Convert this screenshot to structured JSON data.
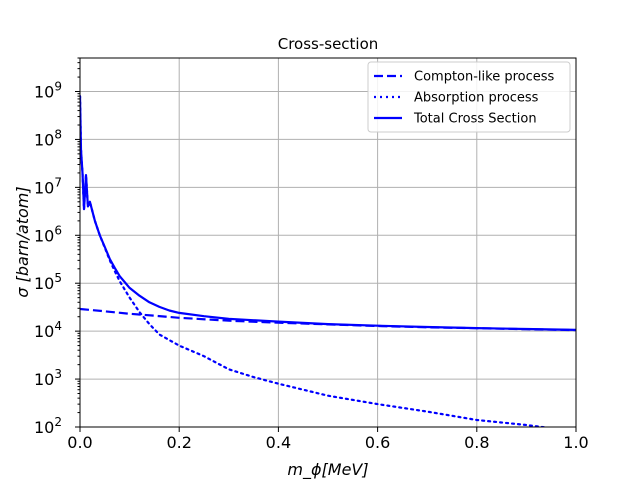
{
  "chart_data": {
    "type": "line",
    "title": "Cross-section",
    "xlabel": "m_ϕ[MeV]",
    "ylabel": "σ [barn/atom]",
    "xlim": [
      0.0,
      1.0
    ],
    "ylim": [
      100,
      5000000000
    ],
    "yscale": "log",
    "grid": true,
    "legend_position": "top-right",
    "x_ticks": [
      "0.0",
      "0.2",
      "0.4",
      "0.6",
      "0.8",
      "1.0"
    ],
    "x_tick_values": [
      0.0,
      0.2,
      0.4,
      0.6,
      0.8,
      1.0
    ],
    "y_tick_exponents": [
      2,
      3,
      4,
      5,
      6,
      7,
      8,
      9
    ],
    "y_tick_base": "10",
    "series": [
      {
        "name": "Compton-like process",
        "style": "dashed",
        "color": "#0000ff",
        "x": [
          0.0,
          0.05,
          0.1,
          0.15,
          0.2,
          0.3,
          0.4,
          0.5,
          0.6,
          0.7,
          0.8,
          0.9,
          1.0
        ],
        "y": [
          29000,
          26000,
          23000,
          21000,
          19000,
          16500,
          15000,
          13800,
          12800,
          12000,
          11500,
          11000,
          10500
        ]
      },
      {
        "name": "Absorption process",
        "style": "dotted",
        "color": "#0000ff",
        "x": [
          0.0,
          0.002,
          0.005,
          0.008,
          0.012,
          0.016,
          0.02,
          0.03,
          0.04,
          0.05,
          0.06,
          0.07,
          0.08,
          0.1,
          0.12,
          0.14,
          0.16,
          0.2,
          0.25,
          0.3,
          0.35,
          0.4,
          0.45,
          0.5,
          0.6,
          0.7,
          0.8,
          0.9,
          0.95
        ],
        "y": [
          800000000,
          60000000,
          20000000,
          3500000,
          18000000,
          4000000,
          5000000,
          2000000,
          1000000,
          550000,
          300000,
          180000,
          110000,
          50000,
          25000,
          14000,
          8500,
          5000,
          3000,
          1600,
          1100,
          800,
          600,
          450,
          300,
          210,
          140,
          110,
          95
        ]
      },
      {
        "name": "Total Cross Section",
        "style": "solid",
        "color": "#0000ff",
        "x": [
          0.0,
          0.002,
          0.005,
          0.008,
          0.012,
          0.016,
          0.02,
          0.03,
          0.04,
          0.05,
          0.06,
          0.07,
          0.08,
          0.1,
          0.12,
          0.14,
          0.16,
          0.18,
          0.2,
          0.25,
          0.3,
          0.4,
          0.5,
          0.6,
          0.7,
          0.8,
          0.9,
          1.0
        ],
        "y": [
          800000000,
          60000000,
          20000000,
          3500000,
          18000000,
          4000000,
          5000000,
          2000000,
          1000000,
          570000,
          320000,
          210000,
          140000,
          80000,
          55000,
          40000,
          32000,
          27000,
          24000,
          20500,
          18000,
          15800,
          14000,
          13000,
          12200,
          11600,
          11100,
          10600
        ]
      }
    ]
  }
}
